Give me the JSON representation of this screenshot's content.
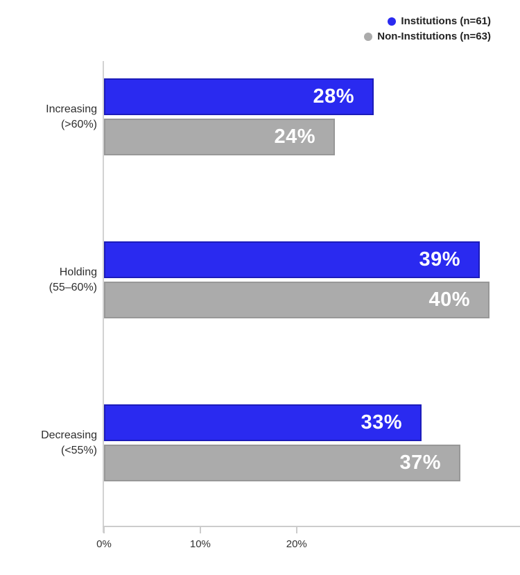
{
  "colors": {
    "institutions": "#2a2af0",
    "institutions_border": "#1c1cba",
    "non_institutions": "#ababab",
    "non_institutions_border": "#979797",
    "axis": "#cccccc",
    "category_text": "#2e2e2e",
    "tick_text": "#333333",
    "value_text": "#ffffff",
    "legend_text": "#222222"
  },
  "legend": {
    "items": [
      {
        "label": "Institutions (n=61)",
        "color_key": "institutions"
      },
      {
        "label": "Non-Institutions (n=63)",
        "color_key": "non_institutions"
      }
    ]
  },
  "chart_data": {
    "type": "bar",
    "orientation": "horizontal",
    "title": "",
    "xlabel": "",
    "ylabel": "",
    "grid": false,
    "legend_position": "top-right",
    "categories": [
      {
        "line1": "Increasing",
        "line2": "(>60%)"
      },
      {
        "line1": "Holding",
        "line2": "(55–60%)"
      },
      {
        "line1": "Decreasing",
        "line2": "(<55%)"
      }
    ],
    "series": [
      {
        "name": "Institutions (n=61)",
        "color_key": "institutions",
        "values": [
          28,
          39,
          33
        ],
        "labels": [
          "28%",
          "39%",
          "33%"
        ]
      },
      {
        "name": "Non-Institutions (n=63)",
        "color_key": "non_institutions",
        "values": [
          24,
          40,
          37
        ],
        "labels": [
          "24%",
          "40%",
          "37%"
        ]
      }
    ],
    "value_suffix": "%",
    "x_ticks": [
      {
        "label": "0%",
        "value": 0
      },
      {
        "label": "10%",
        "value": 10
      },
      {
        "label": "20%",
        "value": 20
      }
    ],
    "xlim": [
      0,
      43.2
    ]
  }
}
